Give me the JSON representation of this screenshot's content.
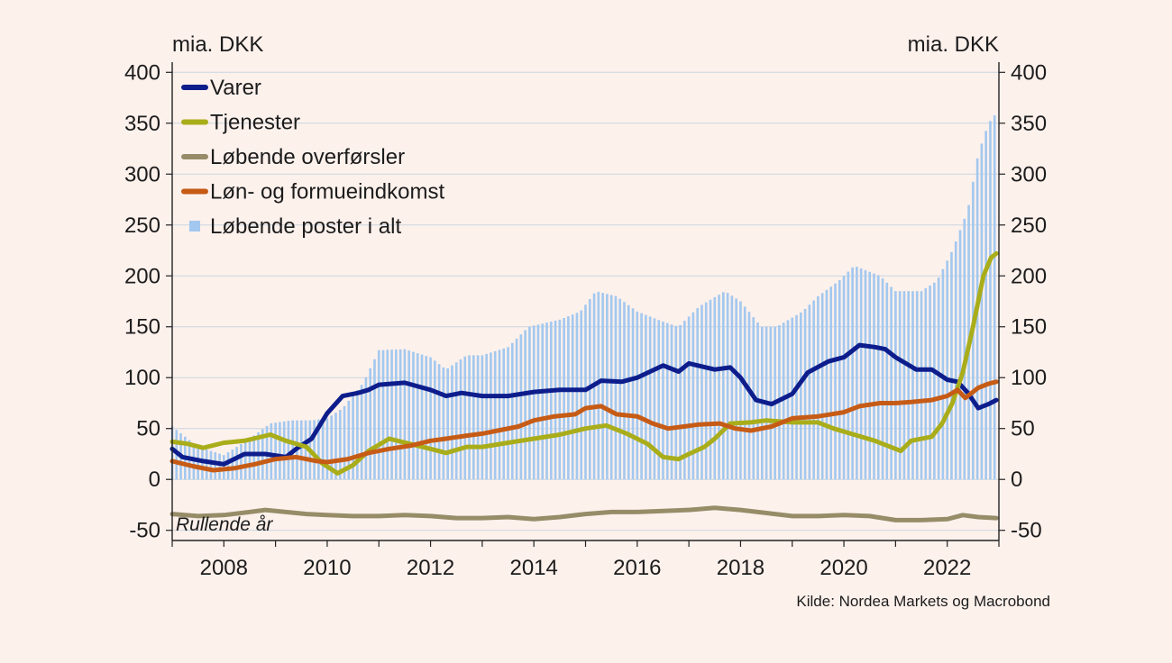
{
  "chart_data": {
    "type": "bar",
    "y_unit_left": "mia. DKK",
    "y_unit_right": "mia. DKK",
    "ylim": [
      -60,
      410
    ],
    "y_ticks": [
      400,
      350,
      300,
      250,
      200,
      150,
      100,
      50,
      0,
      -50
    ],
    "x_range": [
      2007.0,
      2023.0
    ],
    "x_ticks": [
      "2008",
      "2010",
      "2012",
      "2014",
      "2016",
      "2018",
      "2020",
      "2022"
    ],
    "grid": true,
    "legend_position": "top-left",
    "note": "Rullende år",
    "source": "Kilde: Nordea Markets og Macrobond",
    "colors": {
      "background": "#fdf1ec",
      "grid": "#c9d6e0",
      "axis": "#222222",
      "bars": "#a3c8ef",
      "varer": "#0d1d8c",
      "tjenester": "#a9ad1a",
      "overforsler": "#968d68",
      "lon": "#c65b16"
    },
    "bar_series": {
      "name": "Løbende poster i alt",
      "color": "#a3c8ef",
      "points": [
        [
          2007.0,
          52
        ],
        [
          2007.5,
          32
        ],
        [
          2008.0,
          24
        ],
        [
          2008.5,
          40
        ],
        [
          2008.9,
          55
        ],
        [
          2009.3,
          58
        ],
        [
          2009.7,
          58
        ],
        [
          2010.0,
          60
        ],
        [
          2010.3,
          70
        ],
        [
          2010.7,
          95
        ],
        [
          2011.0,
          127
        ],
        [
          2011.5,
          128
        ],
        [
          2012.0,
          120
        ],
        [
          2012.3,
          108
        ],
        [
          2012.7,
          122
        ],
        [
          2013.0,
          122
        ],
        [
          2013.5,
          130
        ],
        [
          2013.9,
          150
        ],
        [
          2014.5,
          157
        ],
        [
          2014.9,
          165
        ],
        [
          2015.2,
          185
        ],
        [
          2015.6,
          180
        ],
        [
          2016.0,
          165
        ],
        [
          2016.5,
          155
        ],
        [
          2016.8,
          150
        ],
        [
          2017.2,
          170
        ],
        [
          2017.7,
          185
        ],
        [
          2018.0,
          175
        ],
        [
          2018.4,
          150
        ],
        [
          2018.7,
          150
        ],
        [
          2019.2,
          165
        ],
        [
          2019.5,
          180
        ],
        [
          2019.9,
          195
        ],
        [
          2020.2,
          210
        ],
        [
          2020.7,
          200
        ],
        [
          2021.0,
          185
        ],
        [
          2021.5,
          185
        ],
        [
          2021.8,
          195
        ],
        [
          2022.1,
          225
        ],
        [
          2022.4,
          265
        ],
        [
          2022.6,
          320
        ],
        [
          2022.8,
          350
        ],
        [
          2022.95,
          360
        ]
      ]
    },
    "series": [
      {
        "name": "Varer",
        "color": "#0d1d8c",
        "points": [
          [
            2007.0,
            30
          ],
          [
            2007.2,
            22
          ],
          [
            2007.6,
            18
          ],
          [
            2008.0,
            15
          ],
          [
            2008.2,
            20
          ],
          [
            2008.4,
            25
          ],
          [
            2008.8,
            25
          ],
          [
            2009.2,
            22
          ],
          [
            2009.4,
            30
          ],
          [
            2009.7,
            40
          ],
          [
            2010.0,
            65
          ],
          [
            2010.3,
            82
          ],
          [
            2010.6,
            85
          ],
          [
            2010.8,
            88
          ],
          [
            2011.0,
            93
          ],
          [
            2011.5,
            95
          ],
          [
            2012.0,
            88
          ],
          [
            2012.3,
            82
          ],
          [
            2012.6,
            85
          ],
          [
            2013.0,
            82
          ],
          [
            2013.5,
            82
          ],
          [
            2014.0,
            86
          ],
          [
            2014.5,
            88
          ],
          [
            2015.0,
            88
          ],
          [
            2015.3,
            97
          ],
          [
            2015.7,
            96
          ],
          [
            2016.0,
            100
          ],
          [
            2016.5,
            112
          ],
          [
            2016.8,
            106
          ],
          [
            2017.0,
            114
          ],
          [
            2017.5,
            108
          ],
          [
            2017.8,
            110
          ],
          [
            2018.0,
            100
          ],
          [
            2018.3,
            78
          ],
          [
            2018.6,
            74
          ],
          [
            2019.0,
            84
          ],
          [
            2019.3,
            105
          ],
          [
            2019.7,
            116
          ],
          [
            2020.0,
            120
          ],
          [
            2020.3,
            132
          ],
          [
            2020.6,
            130
          ],
          [
            2020.8,
            128
          ],
          [
            2021.0,
            120
          ],
          [
            2021.4,
            108
          ],
          [
            2021.7,
            108
          ],
          [
            2022.0,
            98
          ],
          [
            2022.2,
            96
          ],
          [
            2022.4,
            85
          ],
          [
            2022.6,
            70
          ],
          [
            2022.8,
            74
          ],
          [
            2022.95,
            78
          ]
        ]
      },
      {
        "name": "Tjenester",
        "color": "#a9ad1a",
        "points": [
          [
            2007.0,
            37
          ],
          [
            2007.3,
            35
          ],
          [
            2007.6,
            31
          ],
          [
            2008.0,
            36
          ],
          [
            2008.4,
            38
          ],
          [
            2008.9,
            44
          ],
          [
            2009.2,
            38
          ],
          [
            2009.6,
            32
          ],
          [
            2009.9,
            16
          ],
          [
            2010.2,
            6
          ],
          [
            2010.5,
            14
          ],
          [
            2010.8,
            28
          ],
          [
            2011.2,
            40
          ],
          [
            2011.6,
            35
          ],
          [
            2012.0,
            30
          ],
          [
            2012.3,
            26
          ],
          [
            2012.7,
            32
          ],
          [
            2013.0,
            32
          ],
          [
            2013.5,
            36
          ],
          [
            2014.0,
            40
          ],
          [
            2014.5,
            44
          ],
          [
            2015.0,
            50
          ],
          [
            2015.4,
            53
          ],
          [
            2015.8,
            45
          ],
          [
            2016.2,
            35
          ],
          [
            2016.5,
            22
          ],
          [
            2016.8,
            20
          ],
          [
            2017.0,
            25
          ],
          [
            2017.3,
            32
          ],
          [
            2017.5,
            40
          ],
          [
            2017.8,
            55
          ],
          [
            2018.2,
            56
          ],
          [
            2018.5,
            58
          ],
          [
            2019.0,
            56
          ],
          [
            2019.5,
            56
          ],
          [
            2019.8,
            50
          ],
          [
            2020.2,
            44
          ],
          [
            2020.6,
            38
          ],
          [
            2020.9,
            32
          ],
          [
            2021.1,
            28
          ],
          [
            2021.3,
            38
          ],
          [
            2021.7,
            42
          ],
          [
            2021.9,
            55
          ],
          [
            2022.1,
            75
          ],
          [
            2022.3,
            105
          ],
          [
            2022.5,
            150
          ],
          [
            2022.7,
            200
          ],
          [
            2022.85,
            218
          ],
          [
            2022.95,
            222
          ]
        ]
      },
      {
        "name": "Løbende overførsler",
        "color": "#968d68",
        "points": [
          [
            2007.0,
            -34
          ],
          [
            2007.5,
            -36
          ],
          [
            2008.0,
            -35
          ],
          [
            2008.5,
            -32
          ],
          [
            2008.8,
            -30
          ],
          [
            2009.2,
            -32
          ],
          [
            2009.6,
            -34
          ],
          [
            2010.0,
            -35
          ],
          [
            2010.5,
            -36
          ],
          [
            2011.0,
            -36
          ],
          [
            2011.5,
            -35
          ],
          [
            2012.0,
            -36
          ],
          [
            2012.5,
            -38
          ],
          [
            2013.0,
            -38
          ],
          [
            2013.5,
            -37
          ],
          [
            2014.0,
            -39
          ],
          [
            2014.5,
            -37
          ],
          [
            2015.0,
            -34
          ],
          [
            2015.5,
            -32
          ],
          [
            2016.0,
            -32
          ],
          [
            2016.5,
            -31
          ],
          [
            2017.0,
            -30
          ],
          [
            2017.5,
            -28
          ],
          [
            2018.0,
            -30
          ],
          [
            2018.5,
            -33
          ],
          [
            2019.0,
            -36
          ],
          [
            2019.5,
            -36
          ],
          [
            2020.0,
            -35
          ],
          [
            2020.5,
            -36
          ],
          [
            2021.0,
            -40
          ],
          [
            2021.5,
            -40
          ],
          [
            2022.0,
            -39
          ],
          [
            2022.3,
            -35
          ],
          [
            2022.6,
            -37
          ],
          [
            2022.95,
            -38
          ]
        ]
      },
      {
        "name": "Løn- og formueindkomst",
        "color": "#c65b16",
        "points": [
          [
            2007.0,
            18
          ],
          [
            2007.4,
            13
          ],
          [
            2007.8,
            9
          ],
          [
            2008.2,
            11
          ],
          [
            2008.6,
            15
          ],
          [
            2009.0,
            20
          ],
          [
            2009.4,
            22
          ],
          [
            2009.8,
            18
          ],
          [
            2010.0,
            17
          ],
          [
            2010.4,
            20
          ],
          [
            2010.8,
            26
          ],
          [
            2011.2,
            30
          ],
          [
            2011.6,
            33
          ],
          [
            2012.0,
            38
          ],
          [
            2012.3,
            40
          ],
          [
            2012.7,
            43
          ],
          [
            2013.0,
            45
          ],
          [
            2013.3,
            48
          ],
          [
            2013.7,
            52
          ],
          [
            2014.0,
            58
          ],
          [
            2014.4,
            62
          ],
          [
            2014.8,
            64
          ],
          [
            2015.0,
            70
          ],
          [
            2015.3,
            72
          ],
          [
            2015.6,
            64
          ],
          [
            2016.0,
            62
          ],
          [
            2016.3,
            55
          ],
          [
            2016.6,
            50
          ],
          [
            2016.9,
            52
          ],
          [
            2017.2,
            54
          ],
          [
            2017.6,
            55
          ],
          [
            2017.9,
            50
          ],
          [
            2018.2,
            48
          ],
          [
            2018.6,
            52
          ],
          [
            2019.0,
            60
          ],
          [
            2019.5,
            62
          ],
          [
            2020.0,
            66
          ],
          [
            2020.3,
            72
          ],
          [
            2020.7,
            75
          ],
          [
            2021.0,
            75
          ],
          [
            2021.3,
            76
          ],
          [
            2021.7,
            78
          ],
          [
            2022.0,
            82
          ],
          [
            2022.2,
            88
          ],
          [
            2022.35,
            80
          ],
          [
            2022.6,
            90
          ],
          [
            2022.8,
            94
          ],
          [
            2022.95,
            96
          ]
        ]
      }
    ],
    "legend": [
      {
        "label": "Varer",
        "kind": "line",
        "color": "#0d1d8c"
      },
      {
        "label": "Tjenester",
        "kind": "line",
        "color": "#a9ad1a"
      },
      {
        "label": "Løbende overførsler",
        "kind": "line",
        "color": "#968d68"
      },
      {
        "label": "Løn- og formueindkomst",
        "kind": "line",
        "color": "#c65b16"
      },
      {
        "label": "Løbende poster i alt",
        "kind": "square",
        "color": "#a3c8ef"
      }
    ]
  }
}
